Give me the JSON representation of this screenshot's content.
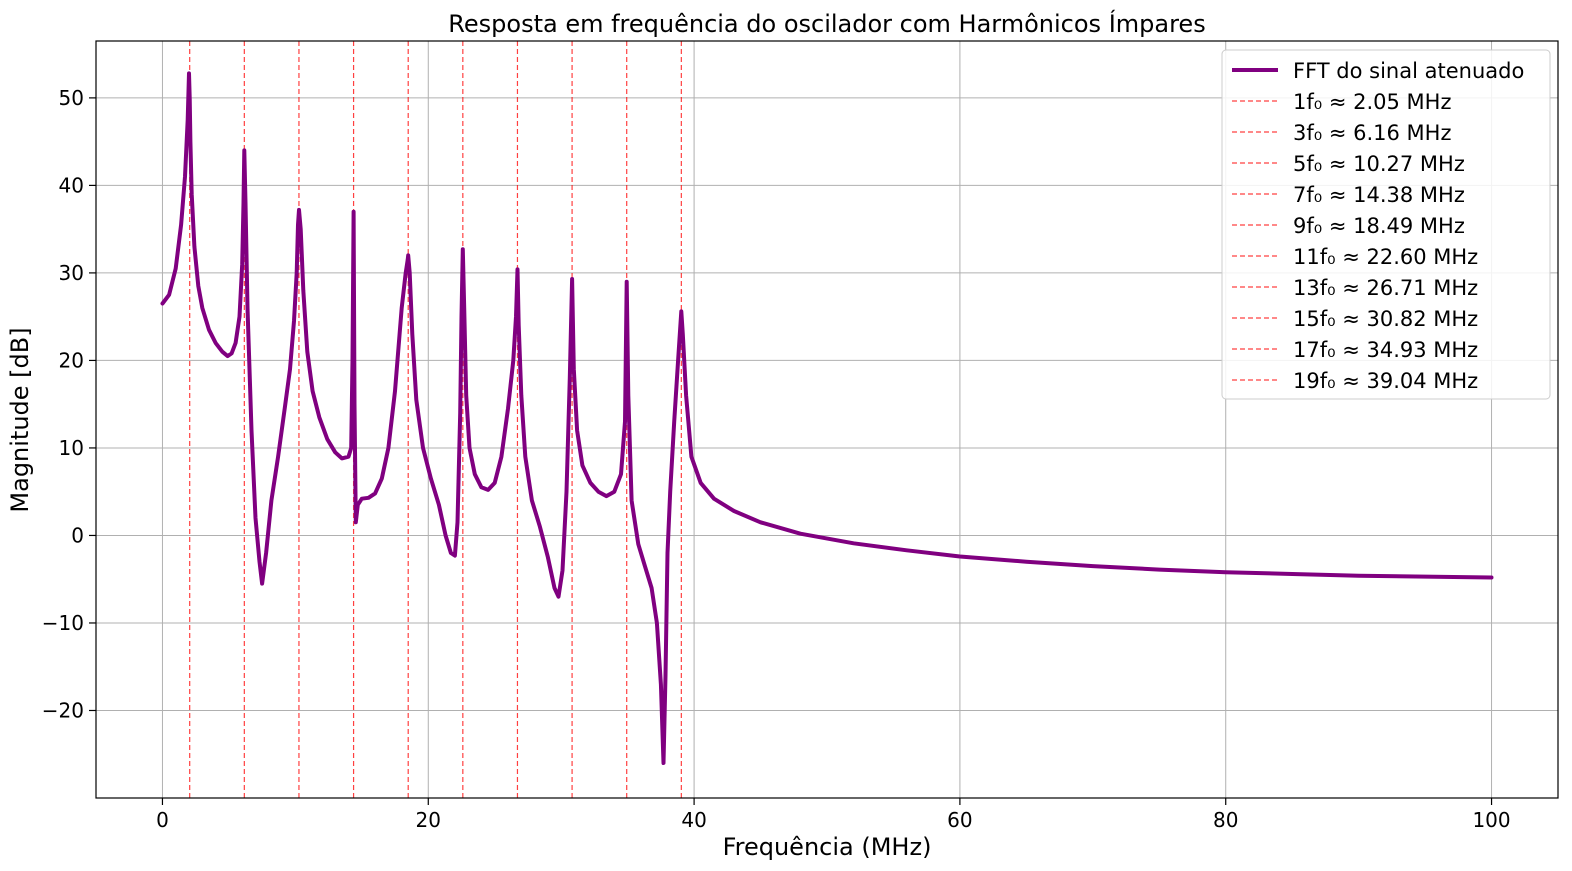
{
  "chart_data": {
    "type": "line",
    "title": "Resposta em frequência do oscilador com Harmônicos Ímpares",
    "xlabel": "Frequência (MHz)",
    "ylabel": "Magnitude [dB]",
    "xlim": [
      -5,
      105
    ],
    "ylim": [
      -30,
      56.5
    ],
    "x_ticks": [
      0,
      20,
      40,
      60,
      80,
      100
    ],
    "y_ticks": [
      -20,
      -10,
      0,
      10,
      20,
      30,
      40,
      50
    ],
    "x_tick_labels": [
      "0",
      "20",
      "40",
      "60",
      "80",
      "100"
    ],
    "y_tick_labels": [
      "−20",
      "−10",
      "0",
      "10",
      "20",
      "30",
      "40",
      "50"
    ],
    "grid": true,
    "legend_position": "top-right",
    "series": [
      {
        "name": "FFT do sinal atenuado",
        "color": "#800080",
        "x": [
          0,
          0.5,
          1.0,
          1.4,
          1.7,
          1.9,
          2.0,
          2.05,
          2.1,
          2.2,
          2.4,
          2.7,
          3.0,
          3.5,
          4.0,
          4.5,
          4.9,
          5.2,
          5.5,
          5.8,
          6.0,
          6.1,
          6.16,
          6.25,
          6.4,
          6.7,
          7.0,
          7.3,
          7.5,
          7.8,
          8.2,
          8.7,
          9.2,
          9.6,
          9.9,
          10.1,
          10.2,
          10.27,
          10.4,
          10.6,
          10.9,
          11.3,
          11.8,
          12.4,
          13.0,
          13.5,
          14.0,
          14.2,
          14.3,
          14.38,
          14.45,
          14.55,
          14.7,
          15.0,
          15.5,
          16.0,
          16.5,
          17.0,
          17.5,
          18.0,
          18.3,
          18.45,
          18.49,
          18.6,
          18.8,
          19.1,
          19.6,
          20.2,
          20.8,
          21.3,
          21.7,
          22.0,
          22.2,
          22.4,
          22.5,
          22.6,
          22.7,
          22.85,
          23.1,
          23.5,
          24.0,
          24.5,
          25.0,
          25.5,
          26.0,
          26.4,
          26.6,
          26.71,
          26.8,
          27.0,
          27.3,
          27.8,
          28.4,
          29.0,
          29.5,
          29.8,
          30.1,
          30.4,
          30.65,
          30.82,
          30.95,
          31.2,
          31.6,
          32.2,
          32.8,
          33.4,
          34.0,
          34.5,
          34.8,
          34.93,
          35.05,
          35.3,
          35.8,
          36.3,
          36.8,
          37.2,
          37.5,
          37.7,
          37.85,
          38.0,
          38.2,
          38.5,
          38.8,
          38.95,
          39.04,
          39.15,
          39.4,
          39.8,
          40.5,
          41.5,
          43.0,
          45.0,
          48.0,
          52.0,
          56.0,
          60.0,
          65.0,
          70.0,
          75.0,
          80.0,
          85.0,
          90.0,
          95.0,
          100.0
        ],
        "y": [
          26.5,
          27.5,
          30.5,
          35.5,
          41.0,
          47.5,
          52.8,
          50.0,
          45.0,
          39.0,
          33.0,
          28.5,
          26.0,
          23.5,
          22.0,
          21.0,
          20.5,
          20.8,
          22.0,
          25.0,
          31.0,
          38.0,
          44.0,
          38.0,
          26.0,
          12.0,
          2.0,
          -3.0,
          -5.5,
          -2.0,
          4.0,
          9.0,
          14.5,
          19.0,
          24.5,
          30.0,
          35.5,
          37.2,
          35.0,
          28.0,
          21.0,
          16.5,
          13.5,
          11.0,
          9.5,
          8.8,
          9.0,
          10.0,
          20.0,
          37.0,
          15.0,
          1.5,
          3.5,
          4.2,
          4.3,
          4.8,
          6.5,
          10.0,
          16.5,
          26.0,
          30.0,
          31.5,
          32.0,
          30.0,
          23.0,
          15.5,
          10.0,
          6.5,
          3.5,
          0.0,
          -2.0,
          -2.3,
          1.5,
          14.0,
          25.0,
          32.7,
          26.0,
          16.0,
          10.0,
          7.0,
          5.5,
          5.2,
          6.0,
          9.0,
          14.5,
          20.0,
          25.0,
          30.4,
          24.0,
          16.0,
          9.0,
          4.0,
          1.0,
          -2.5,
          -6.0,
          -7.0,
          -4.0,
          5.0,
          18.0,
          29.3,
          19.0,
          12.0,
          8.0,
          6.0,
          5.0,
          4.5,
          5.0,
          7.0,
          13.0,
          29.0,
          16.0,
          4.0,
          -1.0,
          -3.5,
          -6.0,
          -10.0,
          -17.0,
          -26.0,
          -16.0,
          -2.0,
          5.0,
          13.0,
          20.0,
          23.5,
          25.6,
          23.0,
          16.0,
          9.0,
          6.0,
          4.2,
          2.8,
          1.5,
          0.2,
          -0.9,
          -1.7,
          -2.4,
          -3.0,
          -3.5,
          -3.9,
          -4.2,
          -4.4,
          -4.6,
          -4.7,
          -4.8
        ]
      }
    ],
    "harmonics": [
      {
        "label": "1f₀ ≈ 2.05 MHz",
        "x": 2.05
      },
      {
        "label": "3f₀ ≈ 6.16 MHz",
        "x": 6.16
      },
      {
        "label": "5f₀ ≈ 10.27 MHz",
        "x": 10.27
      },
      {
        "label": "7f₀ ≈ 14.38 MHz",
        "x": 14.38
      },
      {
        "label": "9f₀ ≈ 18.49 MHz",
        "x": 18.49
      },
      {
        "label": "11f₀ ≈ 22.60 MHz",
        "x": 22.6
      },
      {
        "label": "13f₀ ≈ 26.71 MHz",
        "x": 26.71
      },
      {
        "label": "15f₀ ≈ 30.82 MHz",
        "x": 30.82
      },
      {
        "label": "17f₀ ≈ 34.93 MHz",
        "x": 34.93
      },
      {
        "label": "19f₀ ≈ 39.04 MHz",
        "x": 39.04
      }
    ],
    "harmonic_color": "#ff0000"
  }
}
